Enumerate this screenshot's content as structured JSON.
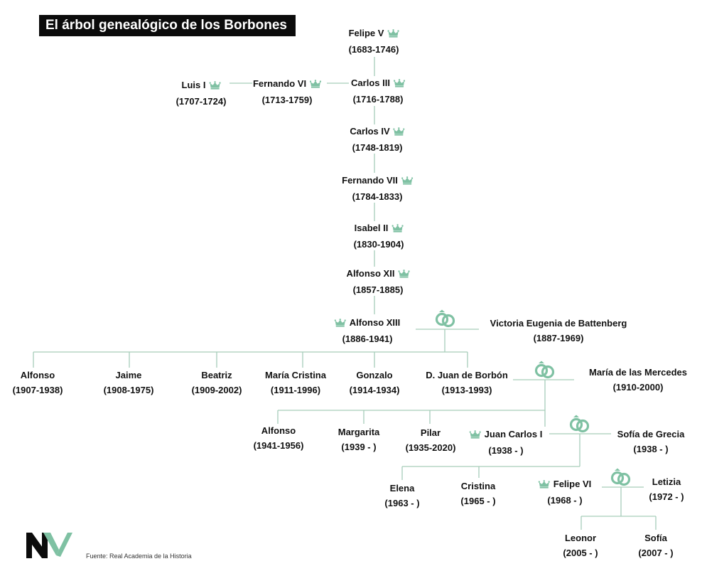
{
  "title": "El árbol genealógico de los Borbones",
  "source": "Fuente: Real Academia de la Historia",
  "colors": {
    "accent": "#7fc1a3",
    "line": "#a6cdb9",
    "title_bg": "#0b0b0b"
  },
  "icons": {
    "monarch": "crown-icon",
    "marriage": "wedding-rings-icon",
    "brand": "nv-logo-icon"
  },
  "people": {
    "felipe_v": {
      "name": "Felipe V",
      "years": "(1683-1746)"
    },
    "luis_i": {
      "name": "Luis I",
      "years": "(1707-1724)"
    },
    "fernando_vi": {
      "name": "Fernando VI",
      "years": "(1713-1759)"
    },
    "carlos_iii": {
      "name": "Carlos III",
      "years": "(1716-1788)"
    },
    "carlos_iv": {
      "name": "Carlos IV",
      "years": "(1748-1819)"
    },
    "fernando_vii": {
      "name": "Fernando VII",
      "years": "(1784-1833)"
    },
    "isabel_ii": {
      "name": "Isabel II",
      "years": "(1830-1904)"
    },
    "alfonso_xii": {
      "name": "Alfonso XII",
      "years": "(1857-1885)"
    },
    "alfonso_xiii": {
      "name": "Alfonso XIII",
      "years": "(1886-1941)"
    },
    "victoria_eugenia": {
      "name": "Victoria Eugenia de Battenberg",
      "years": "(1887-1969)"
    },
    "alfonso_1907": {
      "name": "Alfonso",
      "years": "(1907-1938)"
    },
    "jaime": {
      "name": "Jaime",
      "years": "(1908-1975)"
    },
    "beatriz": {
      "name": "Beatriz",
      "years": "(1909-2002)"
    },
    "maria_cristina": {
      "name": "María Cristina",
      "years": "(1911-1996)"
    },
    "gonzalo": {
      "name": "Gonzalo",
      "years": "(1914-1934)"
    },
    "juan_de_borbon": {
      "name": "D. Juan de Borbón",
      "years": "(1913-1993)"
    },
    "maria_mercedes": {
      "name": "María de las Mercedes",
      "years": "(1910-2000)"
    },
    "alfonso_1941": {
      "name": "Alfonso",
      "years": "(1941-1956)"
    },
    "margarita": {
      "name": "Margarita",
      "years": "(1939 - )"
    },
    "pilar": {
      "name": "Pilar",
      "years": "(1935-2020)"
    },
    "juan_carlos_i": {
      "name": "Juan Carlos I",
      "years": "(1938 - )"
    },
    "sofia_grecia": {
      "name": "Sofía de Grecia",
      "years": "(1938 - )"
    },
    "elena": {
      "name": "Elena",
      "years": "(1963 - )"
    },
    "cristina": {
      "name": "Cristina",
      "years": "(1965 - )"
    },
    "felipe_vi": {
      "name": "Felipe VI",
      "years": "(1968 - )"
    },
    "letizia": {
      "name": "Letizia",
      "years": "(1972 - )"
    },
    "leonor": {
      "name": "Leonor",
      "years": "(2005 - )"
    },
    "sofia": {
      "name": "Sofía",
      "years": "(2007 - )"
    }
  }
}
